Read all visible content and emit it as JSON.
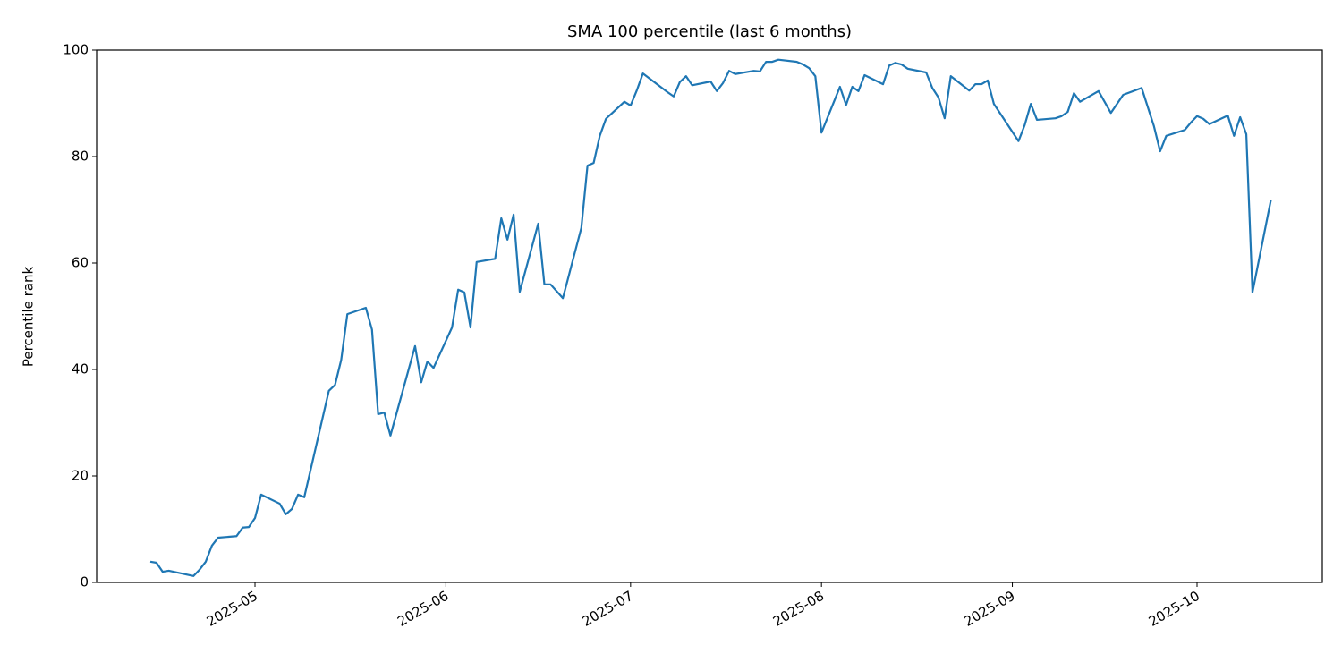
{
  "chart_data": {
    "type": "line",
    "title": "SMA 100 percentile (last 6 months)",
    "ylabel": "Percentile rank",
    "x": [
      104,
      105,
      106,
      107,
      111,
      112,
      113,
      114,
      115,
      118,
      119,
      120,
      121,
      122,
      125,
      126,
      127,
      128,
      129,
      133,
      134,
      135,
      136,
      139,
      140,
      141,
      142,
      143,
      147,
      148,
      149,
      150,
      153,
      154,
      155,
      156,
      157,
      160,
      161,
      162,
      163,
      164,
      167,
      168,
      169,
      171,
      174,
      175,
      176,
      177,
      178,
      181,
      182,
      183,
      184,
      188,
      189,
      190,
      191,
      192,
      195,
      196,
      197,
      198,
      199,
      202,
      203,
      204,
      205,
      206,
      209,
      210,
      211,
      212,
      213,
      216,
      217,
      218,
      219,
      220,
      223,
      224,
      225,
      226,
      227,
      230,
      231,
      232,
      233,
      234,
      237,
      238,
      239,
      240,
      241,
      245,
      246,
      247,
      248,
      251,
      252,
      253,
      254,
      255,
      258,
      260,
      262,
      265,
      267,
      268,
      269,
      272,
      273,
      274,
      275,
      276,
      279,
      280,
      281,
      282,
      283,
      286
    ],
    "series": [
      {
        "color": "#1f77b4",
        "values": [
          3.9,
          3.7,
          2.0,
          2.2,
          1.2,
          2.4,
          3.9,
          6.9,
          8.4,
          8.7,
          10.3,
          10.4,
          12.1,
          16.5,
          14.8,
          12.8,
          13.8,
          16.5,
          16.0,
          36.0,
          37.1,
          41.8,
          50.4,
          51.6,
          47.5,
          31.6,
          31.9,
          27.6,
          44.4,
          37.6,
          41.5,
          40.3,
          47.9,
          55.0,
          54.5,
          47.9,
          60.2,
          60.8,
          68.4,
          64.4,
          69.1,
          54.6,
          67.4,
          56.0,
          56.0,
          53.4,
          66.6,
          78.3,
          78.8,
          83.9,
          87.1,
          90.3,
          89.6,
          92.4,
          95.6,
          92.1,
          91.3,
          94.0,
          95.1,
          93.4,
          94.1,
          92.3,
          93.8,
          96.1,
          95.5,
          96.1,
          96.0,
          97.8,
          97.8,
          98.2,
          97.8,
          97.3,
          96.6,
          95.1,
          84.5,
          93.1,
          89.7,
          93.1,
          92.3,
          95.3,
          93.6,
          97.1,
          97.6,
          97.3,
          96.5,
          95.8,
          92.9,
          91.1,
          87.2,
          95.1,
          92.4,
          93.6,
          93.6,
          94.3,
          89.9,
          82.9,
          85.9,
          89.9,
          86.9,
          87.2,
          87.6,
          88.4,
          91.9,
          90.3,
          92.3,
          88.2,
          91.6,
          92.9,
          85.7,
          81.0,
          83.9,
          85.0,
          86.4,
          87.6,
          87.1,
          86.1,
          87.7,
          83.9,
          87.4,
          84.2,
          54.5,
          71.9
        ]
      }
    ],
    "xlim": [
      95.28,
      294.34
    ],
    "xticks": [
      {
        "value": 121,
        "label": "2025-05"
      },
      {
        "value": 152,
        "label": "2025-06"
      },
      {
        "value": 182,
        "label": "2025-07"
      },
      {
        "value": 213,
        "label": "2025-08"
      },
      {
        "value": 244,
        "label": "2025-09"
      },
      {
        "value": 274,
        "label": "2025-10"
      }
    ],
    "ylim": [
      0,
      100
    ],
    "yticks": [
      0,
      20,
      40,
      60,
      80,
      100
    ]
  }
}
